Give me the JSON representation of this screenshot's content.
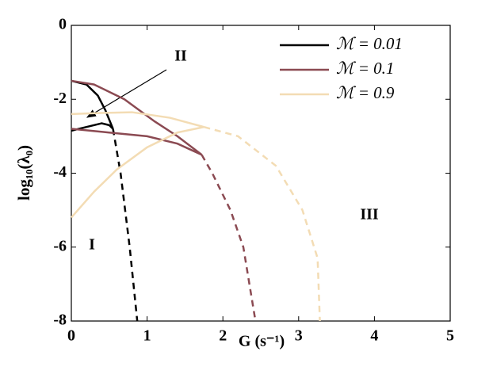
{
  "chart_data": {
    "type": "line",
    "xlabel": "G (s⁻¹)",
    "ylabel": "log₁₀(λ₀)",
    "xlim": [
      0,
      5
    ],
    "ylim": [
      -8,
      0
    ],
    "xticks": [
      0,
      1,
      2,
      3,
      4,
      5
    ],
    "yticks": [
      -8,
      -6,
      -4,
      -2,
      0
    ],
    "legend": "upper right",
    "annotations": [
      "II",
      "I",
      "III"
    ],
    "series": [
      {
        "name": "ℳ = 0.01",
        "color": "#000000",
        "segments": [
          {
            "style": "solid",
            "x": [
              0,
              0.2,
              0.35,
              0.45,
              0.55
            ],
            "values": [
              -1.5,
              -1.6,
              -1.9,
              -2.3,
              -2.8
            ]
          },
          {
            "style": "solid",
            "x": [
              0,
              0.2,
              0.4,
              0.5,
              0.55
            ],
            "values": [
              -2.85,
              -2.75,
              -2.65,
              -2.7,
              -2.8
            ]
          },
          {
            "style": "dashed",
            "x": [
              0.55,
              0.65,
              0.77,
              0.87
            ],
            "values": [
              -2.8,
              -4,
              -6,
              -8
            ]
          }
        ]
      },
      {
        "name": "ℳ = 0.1",
        "color": "#8b4a52",
        "segments": [
          {
            "style": "solid",
            "x": [
              0,
              0.3,
              0.7,
              1.1,
              1.4,
              1.72
            ],
            "values": [
              -1.5,
              -1.6,
              -2,
              -2.6,
              -3,
              -3.5
            ]
          },
          {
            "style": "solid",
            "x": [
              0,
              0.5,
              1,
              1.4,
              1.72
            ],
            "values": [
              -2.8,
              -2.9,
              -3,
              -3.2,
              -3.5
            ]
          },
          {
            "style": "dashed",
            "x": [
              1.72,
              1.86,
              2.1,
              2.27,
              2.43
            ],
            "values": [
              -3.5,
              -4,
              -5,
              -6,
              -8
            ]
          }
        ]
      },
      {
        "name": "ℳ = 0.9",
        "color": "#f3dcb4",
        "segments": [
          {
            "style": "solid",
            "x": [
              0,
              0.4,
              0.8,
              1.3,
              1.75
            ],
            "values": [
              -2.4,
              -2.37,
              -2.35,
              -2.5,
              -2.75
            ]
          },
          {
            "style": "solid",
            "x": [
              0,
              0.3,
              0.6,
              1,
              1.4,
              1.75
            ],
            "values": [
              -5.2,
              -4.5,
              -3.9,
              -3.3,
              -2.9,
              -2.75
            ]
          },
          {
            "style": "dashed",
            "x": [
              1.75,
              2.2,
              2.7,
              3.05,
              3.25,
              3.28
            ],
            "values": [
              -2.75,
              -3,
              -3.8,
              -5,
              -6.3,
              -8
            ]
          }
        ]
      }
    ]
  }
}
